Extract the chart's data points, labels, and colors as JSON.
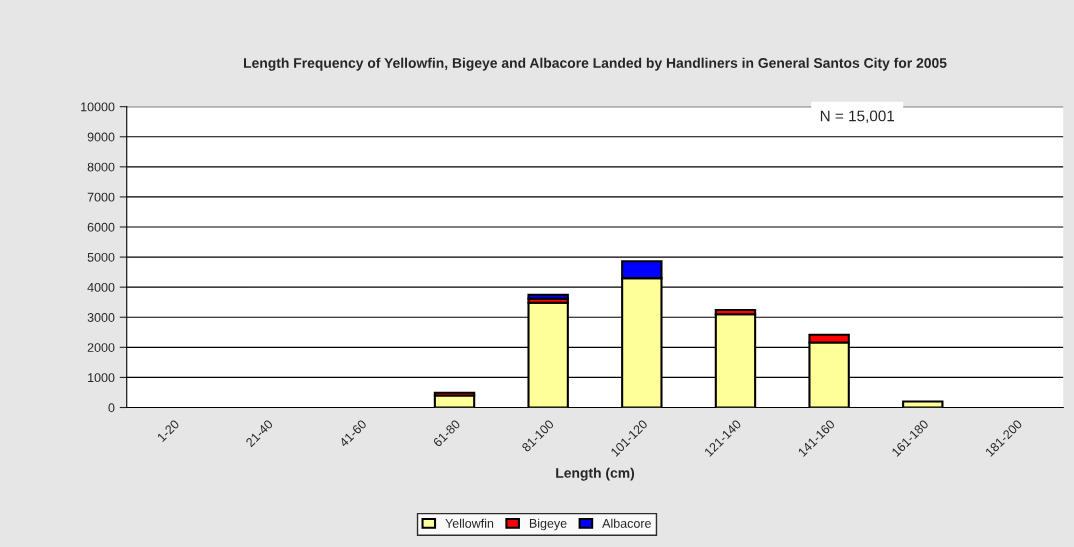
{
  "chart_data": {
    "type": "bar",
    "stacked": true,
    "title": "Length Frequency of Yellowfin, Bigeye and Albacore Landed by Handliners in General Santos City for 2005",
    "xlabel": "Length (cm)",
    "categories": [
      "1-20",
      "21-40",
      "41-60",
      "61-80",
      "81-100",
      "101-120",
      "121-140",
      "141-160",
      "161-180",
      "181-200"
    ],
    "series": [
      {
        "name": "Yellowfin",
        "color": "#ffff99",
        "values": [
          0,
          0,
          0,
          400,
          3480,
          4300,
          3100,
          2160,
          200,
          0
        ]
      },
      {
        "name": "Bigeye",
        "color": "#ff0000",
        "values": [
          0,
          0,
          0,
          90,
          140,
          0,
          140,
          260,
          0,
          0
        ]
      },
      {
        "name": "Albacore",
        "color": "#0000ff",
        "values": [
          0,
          0,
          0,
          0,
          130,
          560,
          0,
          0,
          0,
          0
        ]
      }
    ],
    "ylim": [
      0,
      10000
    ],
    "yticks": [
      0,
      1000,
      2000,
      3000,
      4000,
      5000,
      6000,
      7000,
      8000,
      9000,
      10000
    ],
    "grid": "y",
    "legend": "bottom",
    "annotations": [
      "N = 15,001"
    ]
  }
}
